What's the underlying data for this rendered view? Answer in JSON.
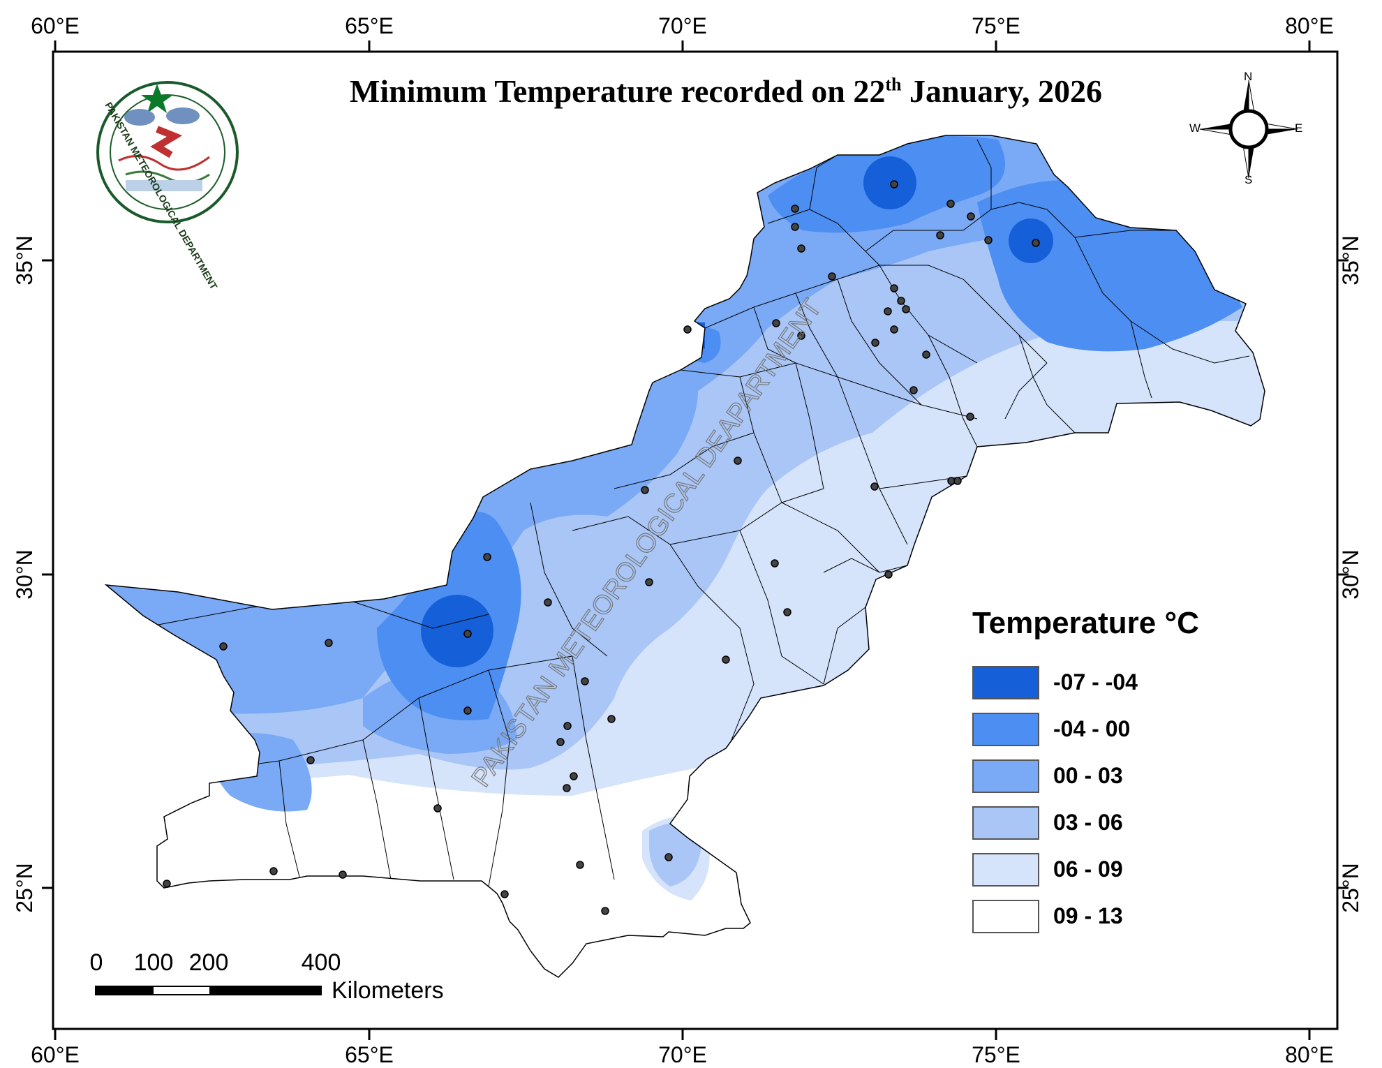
{
  "title": {
    "text": "Minimum Temperature recorded on 22",
    "superscript": "th",
    "text_after": " January, 2026"
  },
  "watermark": "PAKISTAN METEOROLOGICAL DEAPARTMENT",
  "logo": {
    "name": "PAKISTAN METEOROLOGICAL DEPARTMENT",
    "star_color": "#0a7a2a"
  },
  "axes": {
    "longitude_ticks": [
      "60°E",
      "65°E",
      "70°E",
      "75°E",
      "80°E"
    ],
    "latitude_ticks": [
      "35°N",
      "30°N",
      "25°N"
    ]
  },
  "compass": {
    "n": "N",
    "s": "S",
    "e": "E",
    "w": "W"
  },
  "legend": {
    "title": "Temperature °C",
    "items": [
      {
        "label": "-07 - -04",
        "color": "#1560d8"
      },
      {
        "label": "-04 - 00",
        "color": "#4d8ef2"
      },
      {
        "label": "00 - 03",
        "color": "#7aa9f5"
      },
      {
        "label": "03 - 06",
        "color": "#a9c6f7"
      },
      {
        "label": "06 - 09",
        "color": "#d5e3fb"
      },
      {
        "label": "09 - 13",
        "color": "#ffffff"
      }
    ]
  },
  "scale_bar": {
    "ticks": [
      "0",
      "100",
      "200",
      "400"
    ],
    "unit": "Kilometers"
  }
}
